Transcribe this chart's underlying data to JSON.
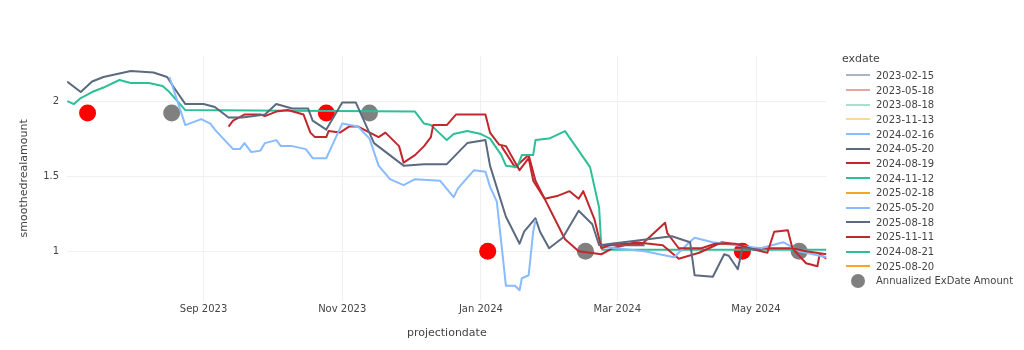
{
  "chart_data": {
    "type": "line",
    "xlabel": "projectiondate",
    "ylabel": "smoothedrealamount",
    "legend_title": "exdate",
    "legend": "right",
    "grid": true,
    "xlim": [
      "2023-07-03",
      "2024-06-01"
    ],
    "ylim": [
      0.67,
      2.3
    ],
    "xticks": [
      {
        "value": "2023-09-01",
        "label": "Sep 2023"
      },
      {
        "value": "2023-11-01",
        "label": "Nov 2023"
      },
      {
        "value": "2024-01-01",
        "label": "Jan 2024"
      },
      {
        "value": "2024-03-01",
        "label": "Mar 2024"
      },
      {
        "value": "2024-05-01",
        "label": "May 2024"
      }
    ],
    "yticks": [
      1,
      1.5,
      2
    ],
    "series": [
      {
        "name": "2023-02-15",
        "color": "#a9b4c6"
      },
      {
        "name": "2023-05-18",
        "color": "#e8a3a5"
      },
      {
        "name": "2023-08-18",
        "color": "#a6e0cf"
      },
      {
        "name": "2023-11-13",
        "color": "#fbd79c"
      },
      {
        "name": "2024-02-16",
        "color": "#88bbff",
        "x": [
          "2023-08-17",
          "2023-08-24",
          "2023-08-31",
          "2023-09-04",
          "2023-09-06",
          "2023-09-14",
          "2023-09-17",
          "2023-09-19",
          "2023-09-22",
          "2023-09-26",
          "2023-09-28",
          "2023-10-03",
          "2023-10-05",
          "2023-10-10",
          "2023-10-16",
          "2023-10-19",
          "2023-10-25",
          "2023-11-01",
          "2023-11-08",
          "2023-11-13",
          "2023-11-17",
          "2023-11-22",
          "2023-11-28",
          "2023-12-03",
          "2023-12-14",
          "2023-12-20",
          "2023-12-22",
          "2023-12-29",
          "2024-01-03",
          "2024-01-05",
          "2024-01-08",
          "2024-01-10",
          "2024-01-12",
          "2024-01-16",
          "2024-01-18",
          "2024-01-19",
          "2024-01-22",
          "2024-01-24",
          "2024-01-25"
        ],
        "values": [
          2.16,
          1.84,
          1.88,
          1.85,
          1.81,
          1.68,
          1.68,
          1.72,
          1.66,
          1.67,
          1.72,
          1.74,
          1.7,
          1.7,
          1.68,
          1.62,
          1.62,
          1.85,
          1.83,
          1.75,
          1.57,
          1.48,
          1.44,
          1.48,
          1.47,
          1.36,
          1.42,
          1.54,
          1.53,
          1.43,
          1.33,
          1.05,
          0.77,
          0.77,
          0.74,
          0.82,
          0.84,
          1.13,
          1.21
        ]
      },
      {
        "name": "2024-05-20",
        "color": "#5c6a80",
        "x": [
          "2023-07-03",
          "2023-07-09",
          "2023-07-14",
          "2023-07-19",
          "2023-07-31",
          "2023-08-10",
          "2023-08-16",
          "2023-08-19",
          "2023-08-24",
          "2023-09-01",
          "2023-09-06",
          "2023-09-12",
          "2023-09-18",
          "2023-09-28",
          "2023-10-03",
          "2023-10-10",
          "2023-10-17",
          "2023-10-19",
          "2023-10-25",
          "2023-11-01",
          "2023-11-07",
          "2023-11-15",
          "2023-11-28",
          "2023-12-07",
          "2023-12-17",
          "2023-12-26",
          "2024-01-03",
          "2024-01-05",
          "2024-01-12",
          "2024-01-18",
          "2024-01-20",
          "2024-01-25",
          "2024-01-27",
          "2024-01-31",
          "2024-02-06",
          "2024-02-13",
          "2024-02-19",
          "2024-02-22",
          "2024-03-25",
          "2024-04-02",
          "2024-04-04",
          "2024-04-12",
          "2024-04-17",
          "2024-04-19",
          "2024-04-23",
          "2024-04-25",
          "2024-05-03"
        ],
        "values": [
          2.13,
          2.06,
          2.13,
          2.16,
          2.2,
          2.19,
          2.16,
          2.09,
          1.98,
          1.98,
          1.96,
          1.89,
          1.89,
          1.91,
          1.98,
          1.95,
          1.95,
          1.87,
          1.81,
          1.99,
          1.99,
          1.72,
          1.57,
          1.58,
          1.58,
          1.72,
          1.74,
          1.57,
          1.23,
          1.05,
          1.13,
          1.22,
          1.13,
          1.02,
          1.09,
          1.27,
          1.18,
          1.04,
          1.1,
          1.06,
          0.84,
          0.83,
          0.98,
          0.97,
          0.88,
          1.02,
          1.01
        ]
      },
      {
        "name": "2024-08-19",
        "color": "#c0282d",
        "x": [
          "2023-09-12",
          "2023-09-14",
          "2023-09-19",
          "2023-09-26",
          "2023-09-28",
          "2023-10-03",
          "2023-10-08",
          "2023-10-15",
          "2023-10-18",
          "2023-10-20",
          "2023-10-25",
          "2023-10-26",
          "2023-10-31",
          "2023-11-04",
          "2023-11-08",
          "2023-11-17",
          "2023-11-20",
          "2023-11-26",
          "2023-11-28",
          "2023-12-03",
          "2023-12-07",
          "2023-12-10",
          "2023-12-11",
          "2023-12-17",
          "2023-12-21",
          "2024-01-03",
          "2024-01-05",
          "2024-01-09",
          "2024-01-12",
          "2024-01-18",
          "2024-01-22",
          "2024-01-24",
          "2024-01-29",
          "2024-02-04",
          "2024-02-09",
          "2024-02-13",
          "2024-02-15",
          "2024-02-20",
          "2024-02-23",
          "2024-02-28",
          "2024-03-12",
          "2024-03-22",
          "2024-03-23",
          "2024-03-28",
          "2024-04-07",
          "2024-04-13",
          "2024-04-22",
          "2024-04-28",
          "2024-05-06",
          "2024-05-09",
          "2024-05-15",
          "2024-05-17",
          "2024-05-23",
          "2024-06-01"
        ],
        "values": [
          1.83,
          1.87,
          1.91,
          1.91,
          1.9,
          1.93,
          1.94,
          1.91,
          1.79,
          1.76,
          1.76,
          1.8,
          1.79,
          1.83,
          1.83,
          1.76,
          1.79,
          1.7,
          1.59,
          1.64,
          1.7,
          1.76,
          1.84,
          1.84,
          1.91,
          1.91,
          1.79,
          1.71,
          1.7,
          1.54,
          1.62,
          1.47,
          1.35,
          1.37,
          1.4,
          1.35,
          1.4,
          1.21,
          1.02,
          1.05,
          1.05,
          1.19,
          1.12,
          1.02,
          1.02,
          1.05,
          1.05,
          1.02,
          0.99,
          1.13,
          1.14,
          1.02,
          1.0,
          0.98
        ]
      },
      {
        "name": "2024-11-12",
        "color": "#2dbf97",
        "x": [
          "2023-07-03",
          "2023-07-06",
          "2023-07-09",
          "2023-07-14",
          "2023-07-19",
          "2023-07-26",
          "2023-07-31",
          "2023-08-08",
          "2023-08-14",
          "2023-08-17",
          "2023-08-24",
          "2023-12-03",
          "2023-12-07",
          "2023-12-10",
          "2023-12-17",
          "2023-12-20",
          "2023-12-26",
          "2024-01-01",
          "2024-01-05",
          "2024-01-10",
          "2024-01-12",
          "2024-01-17",
          "2024-01-19",
          "2024-01-24",
          "2024-01-25",
          "2024-01-31",
          "2024-02-07",
          "2024-02-13",
          "2024-02-18",
          "2024-02-22",
          "2024-02-23"
        ],
        "values": [
          2.0,
          1.98,
          2.02,
          2.06,
          2.09,
          2.14,
          2.12,
          2.12,
          2.1,
          2.06,
          1.94,
          1.93,
          1.85,
          1.84,
          1.74,
          1.78,
          1.8,
          1.78,
          1.75,
          1.64,
          1.57,
          1.56,
          1.64,
          1.64,
          1.74,
          1.75,
          1.8,
          1.67,
          1.56,
          1.29,
          1.02
        ]
      },
      {
        "name": "2025-02-18",
        "color": "#f5a623"
      },
      {
        "name": "2025-05-20",
        "color": "#88bbff",
        "x": [
          "2024-02-23",
          "2024-03-13",
          "2024-03-26",
          "2024-04-01",
          "2024-04-04",
          "2024-04-12",
          "2024-04-22",
          "2024-05-03",
          "2024-05-13",
          "2024-05-20",
          "2024-06-01"
        ],
        "values": [
          1.03,
          1.0,
          0.96,
          1.05,
          1.09,
          1.06,
          1.04,
          1.02,
          1.06,
          1.0,
          0.96
        ]
      },
      {
        "name": "2025-08-18",
        "color": "#5c6a80",
        "x": [
          "2024-02-23",
          "2024-03-13"
        ],
        "values": [
          1.04,
          1.04
        ]
      },
      {
        "name": "2025-11-11",
        "color": "#c0282d",
        "x": [
          "2024-01-10",
          "2024-01-16",
          "2024-01-22",
          "2024-01-25",
          "2024-02-07",
          "2024-02-13",
          "2024-02-23",
          "2024-02-28",
          "2024-03-09",
          "2024-03-21",
          "2024-03-28",
          "2024-04-06",
          "2024-04-16",
          "2024-04-25",
          "2024-04-30",
          "2024-05-17",
          "2024-05-23",
          "2024-05-28",
          "2024-05-29",
          "2024-06-01"
        ],
        "values": [
          1.7,
          1.56,
          1.64,
          1.47,
          1.08,
          1.0,
          0.98,
          1.02,
          1.06,
          1.04,
          0.95,
          0.99,
          1.06,
          1.04,
          1.02,
          1.02,
          0.92,
          0.9,
          0.98,
          0.95
        ]
      },
      {
        "name": "2024-08-21",
        "color": "#2dbf97",
        "x": [
          "2024-02-23",
          "2024-06-01"
        ],
        "values": [
          1.01,
          1.01
        ]
      },
      {
        "name": "2025-08-20",
        "color": "#f5a623"
      },
      {
        "name": "Annualized ExDate Amount",
        "type": "scatter",
        "marker": "circle",
        "color": "#808080",
        "colors": [
          "#ff0000",
          "#808080",
          "#ff0000",
          "#808080",
          "#ff0000",
          "#808080",
          "#ff0000",
          "#808080"
        ],
        "x": [
          "2023-07-12",
          "2023-08-18",
          "2023-10-25",
          "2023-11-13",
          "2024-01-04",
          "2024-02-16",
          "2024-04-25",
          "2024-05-20"
        ],
        "values": [
          1.92,
          1.92,
          1.92,
          1.92,
          1.0,
          1.0,
          1.0,
          1.0
        ]
      }
    ]
  }
}
